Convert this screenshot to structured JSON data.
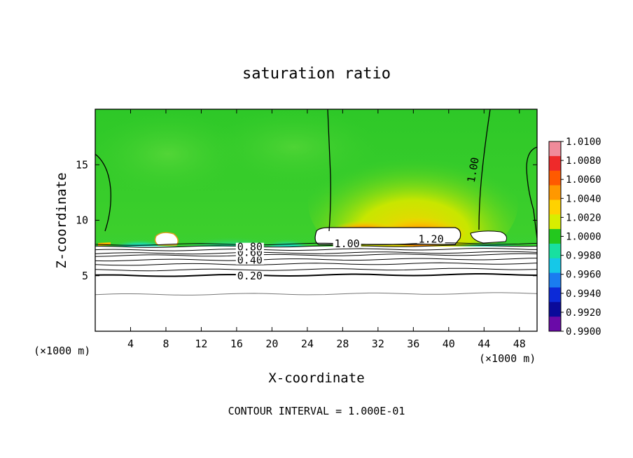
{
  "chart_data": {
    "type": "heatmap",
    "title": "saturation ratio",
    "xlabel": "X-coordinate",
    "ylabel": "Z-coordinate",
    "x_unit_left": "(×1000 m)",
    "x_unit_right": "(×1000 m)",
    "xlim": [
      0,
      50
    ],
    "ylim": [
      0,
      20
    ],
    "xticks": [
      "4",
      "8",
      "12",
      "16",
      "20",
      "24",
      "28",
      "32",
      "36",
      "40",
      "44",
      "48"
    ],
    "xtick_values": [
      4,
      8,
      12,
      16,
      20,
      24,
      28,
      32,
      36,
      40,
      44,
      48
    ],
    "yticks": [
      "5",
      "10",
      "15"
    ],
    "ytick_values": [
      5,
      10,
      15
    ],
    "colorbar": {
      "labels": [
        "1.0100",
        "1.0080",
        "1.0060",
        "1.0040",
        "1.0020",
        "1.0000",
        "0.9980",
        "0.9960",
        "0.9940",
        "0.9920",
        "0.9900"
      ],
      "colors": [
        "#f08b9a",
        "#ee2a2a",
        "#ff5a00",
        "#ff9800",
        "#ffd200",
        "#d8ee00",
        "#23c81e",
        "#18e0a0",
        "#15c8e8",
        "#1a7cf0",
        "#0c2ad8",
        "#0a0a9a",
        "#6a0aa8"
      ]
    },
    "contour_labels": [
      {
        "text": "0.20",
        "x": 17.5,
        "z": 4.8
      },
      {
        "text": "0.40",
        "x": 17.5,
        "z": 6.2
      },
      {
        "text": "0.60",
        "x": 17.5,
        "z": 6.9
      },
      {
        "text": "0.80",
        "x": 17.5,
        "z": 7.4
      },
      {
        "text": "1.00",
        "x": 28.5,
        "z": 7.7
      },
      {
        "text": "1.20",
        "x": 38.0,
        "z": 8.1
      },
      {
        "text": "1.00",
        "x": 43.0,
        "z": 14.5
      }
    ],
    "background_level": 1.0,
    "saturated_regions_note": "",
    "footer": "CONTOUR INTERVAL = 1.000E-01"
  }
}
